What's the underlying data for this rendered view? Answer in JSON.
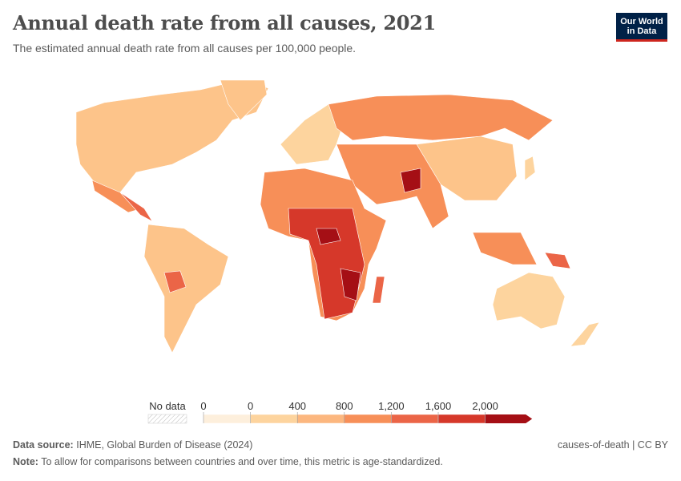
{
  "header": {
    "title": "Annual death rate from all causes, 2021",
    "subtitle": "The estimated annual death rate from all causes per 100,000 people.",
    "logo": [
      "Our World",
      "in Data"
    ]
  },
  "legend": {
    "no_data": "No data",
    "ticks": [
      "0",
      "0",
      "400",
      "800",
      "1,200",
      "1,600",
      "2,000"
    ],
    "colors": [
      "#fdefdc",
      "#fdd49e",
      "#fcb77f",
      "#f78f58",
      "#eb6547",
      "#d6382a",
      "#a50f15"
    ]
  },
  "footer": {
    "source_label": "Data source:",
    "source": "IHME, Global Burden of Disease (2024)",
    "license": "causes-of-death | CC BY",
    "note_label": "Note:",
    "note": "To allow for comparisons between countries and over time, this metric is age-standardized."
  }
}
